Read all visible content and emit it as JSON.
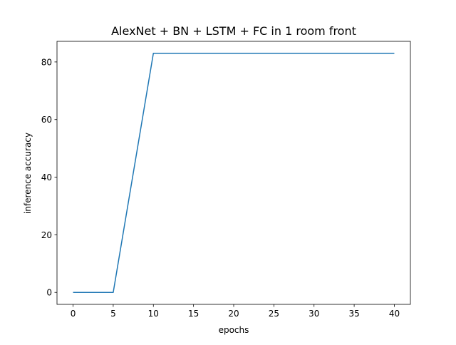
{
  "chart_data": {
    "type": "line",
    "title": "AlexNet + BN + LSTM + FC in 1 room front",
    "xlabel": "epochs",
    "ylabel": "inference accuracy",
    "xlim": [
      -2,
      42
    ],
    "ylim": [
      -4.15,
      87.15
    ],
    "xticks": [
      0,
      5,
      10,
      15,
      20,
      25,
      30,
      35,
      40
    ],
    "yticks": [
      0,
      20,
      40,
      60,
      80
    ],
    "grid": false,
    "legend": "none",
    "series": [
      {
        "color": "#1f77b4",
        "x": [
          0,
          1,
          2,
          3,
          4,
          5,
          6,
          7,
          8,
          9,
          10,
          11,
          12,
          13,
          14,
          15,
          16,
          17,
          18,
          19,
          20,
          21,
          22,
          23,
          24,
          25,
          26,
          27,
          28,
          29,
          30,
          31,
          32,
          33,
          34,
          35,
          36,
          37,
          38,
          39,
          40
        ],
        "y": [
          0,
          0,
          0,
          0,
          0,
          0,
          16.6,
          33.2,
          49.8,
          66.4,
          83,
          83,
          83,
          83,
          83,
          83,
          83,
          83,
          83,
          83,
          83,
          83,
          83,
          83,
          83,
          83,
          83,
          83,
          83,
          83,
          83,
          83,
          83,
          83,
          83,
          83,
          83,
          83,
          83,
          83,
          83
        ]
      }
    ]
  }
}
